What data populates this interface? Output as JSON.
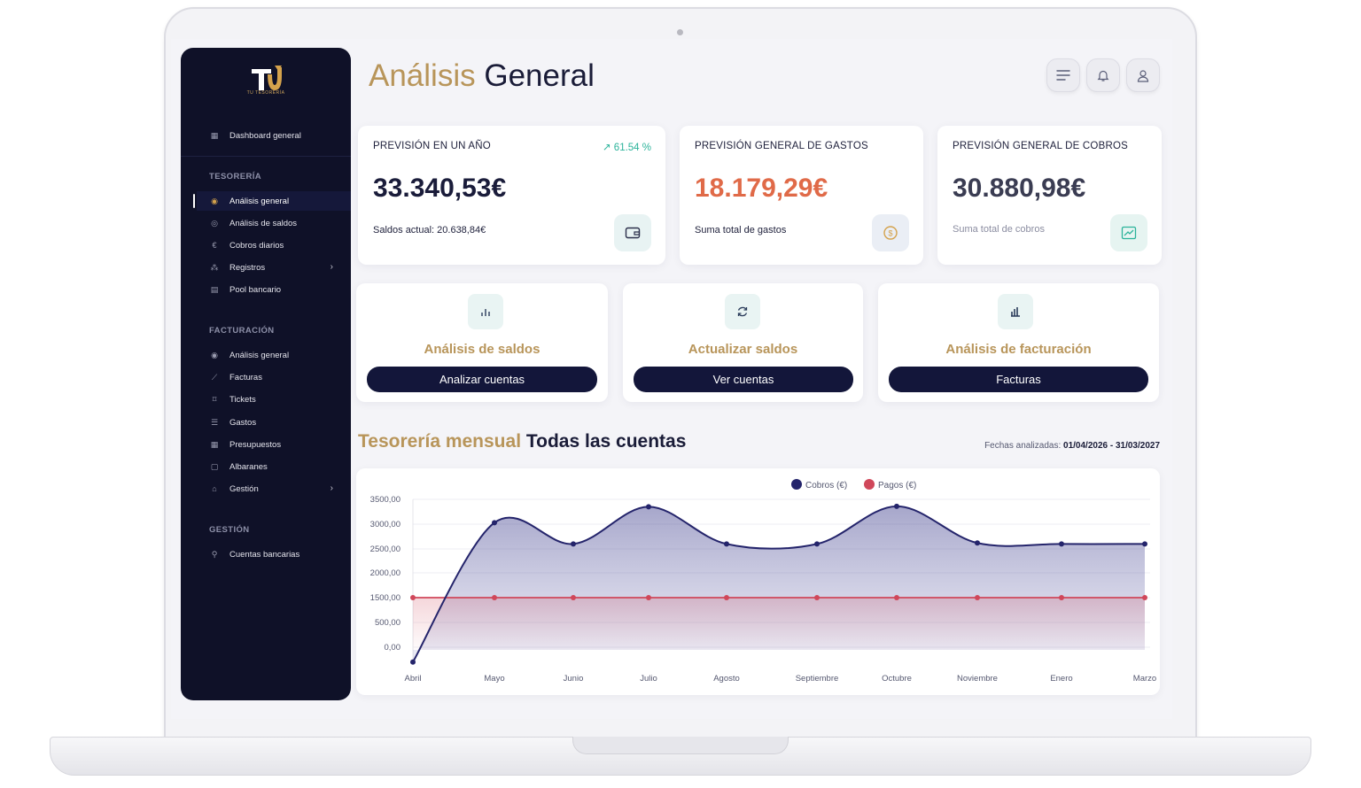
{
  "brand": {
    "logo_text": "TU TESORERÍA",
    "accent": "#b8955a",
    "sidebar_bg": "#0f1128"
  },
  "sidebar": {
    "top_item": {
      "label": "Dashboard general",
      "icon": "grid-icon"
    },
    "sections": [
      {
        "label": "TESORERÍA",
        "items": [
          {
            "label": "Análisis general",
            "icon": "gauge-icon",
            "active": true
          },
          {
            "label": "Análisis de saldos",
            "icon": "gauge-icon"
          },
          {
            "label": "Cobros diarios",
            "icon": "euro-icon"
          },
          {
            "label": "Registros",
            "icon": "tree-icon",
            "has_children": true
          },
          {
            "label": "Pool bancario",
            "icon": "bank-pool-icon"
          }
        ]
      },
      {
        "label": "FACTURACIÓN",
        "items": [
          {
            "label": "Análisis general",
            "icon": "gauge-icon"
          },
          {
            "label": "Facturas",
            "icon": "line-chart-icon"
          },
          {
            "label": "Tickets",
            "icon": "ticket-icon"
          },
          {
            "label": "Gastos",
            "icon": "sort-list-icon"
          },
          {
            "label": "Presupuestos",
            "icon": "calculator-icon"
          },
          {
            "label": "Albaranes",
            "icon": "clipboard-icon"
          },
          {
            "label": "Gestión",
            "icon": "building-icon",
            "has_children": true
          }
        ]
      },
      {
        "label": "GESTIÓN",
        "items": [
          {
            "label": "Cuentas bancarias",
            "icon": "hand-coin-icon"
          }
        ]
      }
    ]
  },
  "header": {
    "title_part1": "Análisis",
    "title_part2": "General"
  },
  "kpis": [
    {
      "title": "PREVISIÓN EN UN AÑO",
      "value": "33.340,53€",
      "sub": "Saldos actual: 20.638,84€",
      "badge": "61.54 %",
      "value_color": "#1a1c3a",
      "icon": "wallet-icon"
    },
    {
      "title": "PREVISIÓN GENERAL DE GASTOS",
      "value": "18.179,29€",
      "sub": "Suma total de gastos",
      "value_color": "#e06a48",
      "icon": "coin-icon"
    },
    {
      "title": "PREVISIÓN GENERAL DE COBROS",
      "value": "30.880,98€",
      "sub": "Suma total de cobros",
      "value_color": "#3a3c52",
      "icon": "trend-up-icon"
    }
  ],
  "actions": [
    {
      "title": "Análisis de saldos",
      "button": "Analizar cuentas",
      "icon": "bar-chart-icon"
    },
    {
      "title": "Actualizar saldos",
      "button": "Ver cuentas",
      "icon": "refresh-icon"
    },
    {
      "title": "Análisis de facturación",
      "button": "Facturas",
      "icon": "invoice-chart-icon"
    }
  ],
  "monthly": {
    "title_part1": "Tesorería mensual",
    "title_part2": "Todas las cuentas",
    "dates_label": "Fechas analizadas:",
    "dates_value": "01/04/2026 - 31/03/2027"
  },
  "chart_data": {
    "type": "area",
    "title": "",
    "x": [
      "Abril",
      "Mayo",
      "Junio",
      "Julio",
      "Agosto",
      "Septiembre",
      "Octubre",
      "Noviembre",
      "Enero",
      "Marzo"
    ],
    "series": [
      {
        "name": "Cobros (€)",
        "color": "#24246b",
        "values": [
          -300,
          3030,
          2600,
          3350,
          2600,
          2600,
          3360,
          2620,
          2600,
          2600
        ]
      },
      {
        "name": "Pagos (€)",
        "color": "#d0475a",
        "values": [
          1500,
          1500,
          1500,
          1500,
          1500,
          1500,
          1500,
          1500,
          1500,
          1500
        ]
      }
    ],
    "y_ticks": [
      "3500,00",
      "3000,00",
      "2500,00",
      "2000,00",
      "1500,00",
      "500,00",
      "0,00"
    ],
    "ylim": [
      0,
      3500
    ],
    "legend": "top-center",
    "grid": true
  }
}
